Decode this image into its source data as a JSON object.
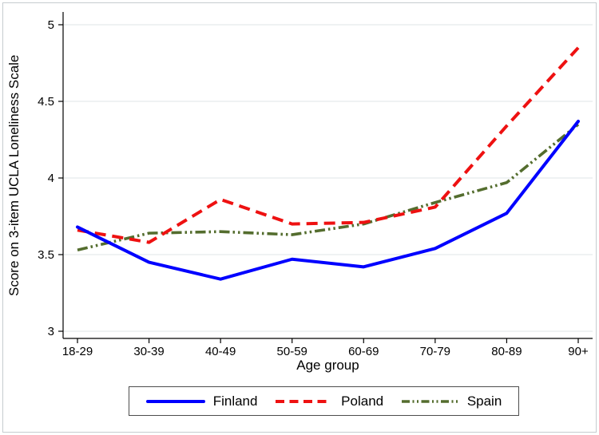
{
  "chart_data": {
    "type": "line",
    "title": "",
    "xlabel": "Age group",
    "ylabel": "Score on 3-item UCLA Loneliness Scale",
    "categories": [
      "18-29",
      "30-39",
      "40-49",
      "50-59",
      "60-69",
      "70-79",
      "80-89",
      "90+"
    ],
    "ylim": [
      3,
      5
    ],
    "yticks": [
      3,
      3.5,
      4,
      4.5,
      5
    ],
    "ytick_labels": [
      "3",
      "3.5",
      "4",
      "4.5",
      "5"
    ],
    "grid": "horizontal",
    "legend_position": "bottom-boxed",
    "series": [
      {
        "name": "Finland",
        "color": "#0000ff",
        "line_style": "solid",
        "values": [
          3.68,
          3.45,
          3.34,
          3.47,
          3.42,
          3.54,
          3.77,
          4.37
        ]
      },
      {
        "name": "Poland",
        "color": "#ee1111",
        "line_style": "dashed",
        "values": [
          3.66,
          3.58,
          3.86,
          3.7,
          3.71,
          3.81,
          4.34,
          4.85
        ]
      },
      {
        "name": "Spain",
        "color": "#546d2e",
        "line_style": "dash-dot-dot",
        "values": [
          3.53,
          3.64,
          3.65,
          3.63,
          3.7,
          3.84,
          3.97,
          4.35
        ]
      }
    ]
  },
  "style": {
    "grid_color": "#e5eaec",
    "spine_color": "#000000",
    "tick_color": "#000000",
    "legend_border_color": "#4d4d4d",
    "frame_border_color": "#c6ccd0",
    "background_color": "#ffffff"
  }
}
